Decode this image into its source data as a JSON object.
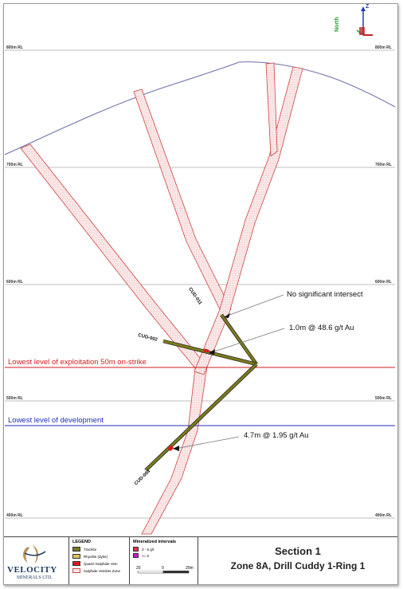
{
  "rl_labels": {
    "rl800_left": "800m RL",
    "rl800_right": "800m RL",
    "rl700_left": "700m RL",
    "rl700_right": "700m RL",
    "rl600_left": "600m RL",
    "rl600_right": "600m RL",
    "rl500_left": "500m RL",
    "rl500_right": "500m RL",
    "rl400_left": "400m RL",
    "rl400_right": "400m RL"
  },
  "levels": {
    "exploitation": "Lowest level of exploitation 50m on-strike",
    "development": "Lowest level of development",
    "exploitation_color": "#d11f1f",
    "development_color": "#1f2fb8"
  },
  "holes": {
    "cud011": "CUD-011",
    "cud002": "CUD-002",
    "cud004": "CUD-004"
  },
  "callouts": {
    "c1": "No significant intersect",
    "c2": "1.0m @ 48.6 g/t Au",
    "c3": "4.7m @ 1.95 g/t Au"
  },
  "compass": {
    "z": "Z",
    "north": "North"
  },
  "logo": {
    "line1": "VELOCITY",
    "line2": "MINERALS LTD."
  },
  "legend": {
    "title": "LEGEND",
    "items": [
      "Trachite",
      "Rhyolite (dyke)",
      "Quartz-Sulphide Vein",
      "Sulphide Veinlets Zone"
    ]
  },
  "mineralized": {
    "title": "Mineralized intervals",
    "items": [
      "3 - 5 g/t",
      ">= 5"
    ]
  },
  "scale": {
    "t0": "20",
    "t1": "0",
    "t2": "20m"
  },
  "title": {
    "line1": "Section 1",
    "line2": "Zone 8A, Drill Cuddy 1-Ring 1"
  },
  "colors": {
    "drill": "#7a7a1c",
    "zone": "#cc4444",
    "topo": "#6b6fa8"
  }
}
